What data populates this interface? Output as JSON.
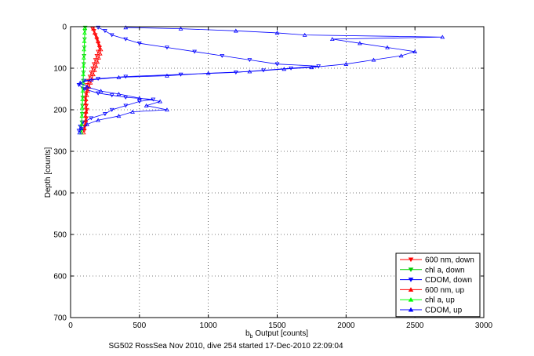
{
  "chart_data": {
    "type": "scatter",
    "xlabel": "b",
    "xlabel_sub": "b",
    "xlabel_rest": " Output [counts]",
    "ylabel": "Depth [counts]",
    "footer": "SG502 RossSea Nov 2010, dive 254 started 17-Dec-2010 22:09:04",
    "xlim": [
      0,
      3000
    ],
    "ylim": [
      0,
      700
    ],
    "y_reversed": true,
    "grid": true,
    "grid_style": "dotted",
    "x_ticks": [
      0,
      500,
      1000,
      1500,
      2000,
      2500,
      3000
    ],
    "y_ticks": [
      0,
      100,
      200,
      300,
      400,
      500,
      600,
      700
    ],
    "legend_position": "bottom-right",
    "series": [
      {
        "name": "600 nm, down",
        "color": "#ff0000",
        "marker": "triangle-down",
        "points": [
          [
            100,
            250
          ],
          [
            105,
            240
          ],
          [
            110,
            230
          ],
          [
            115,
            220
          ],
          [
            110,
            210
          ],
          [
            120,
            200
          ],
          [
            115,
            190
          ],
          [
            110,
            180
          ],
          [
            105,
            170
          ],
          [
            110,
            160
          ],
          [
            115,
            150
          ],
          [
            120,
            140
          ],
          [
            130,
            130
          ],
          [
            140,
            120
          ],
          [
            150,
            110
          ],
          [
            160,
            100
          ],
          [
            170,
            90
          ],
          [
            180,
            80
          ],
          [
            190,
            70
          ],
          [
            200,
            60
          ],
          [
            210,
            50
          ],
          [
            200,
            40
          ],
          [
            190,
            30
          ],
          [
            180,
            20
          ],
          [
            170,
            10
          ],
          [
            160,
            5
          ]
        ]
      },
      {
        "name": "chl a, down",
        "color": "#00cc00",
        "marker": "triangle-down",
        "points": [
          [
            80,
            250
          ],
          [
            82,
            230
          ],
          [
            84,
            210
          ],
          [
            86,
            190
          ],
          [
            88,
            170
          ],
          [
            90,
            150
          ],
          [
            92,
            130
          ],
          [
            94,
            110
          ],
          [
            96,
            90
          ],
          [
            98,
            70
          ],
          [
            100,
            50
          ],
          [
            102,
            30
          ],
          [
            104,
            10
          ],
          [
            106,
            2
          ]
        ]
      },
      {
        "name": "CDOM, down",
        "color": "#0000ff",
        "marker": "triangle-down",
        "points": [
          [
            60,
            250
          ],
          [
            70,
            240
          ],
          [
            90,
            230
          ],
          [
            150,
            220
          ],
          [
            250,
            210
          ],
          [
            300,
            200
          ],
          [
            400,
            190
          ],
          [
            500,
            180
          ],
          [
            600,
            175
          ],
          [
            400,
            170
          ],
          [
            300,
            165
          ],
          [
            200,
            160
          ],
          [
            100,
            150
          ],
          [
            60,
            140
          ],
          [
            100,
            130
          ],
          [
            200,
            125
          ],
          [
            400,
            120
          ],
          [
            800,
            115
          ],
          [
            1200,
            110
          ],
          [
            1400,
            105
          ],
          [
            1600,
            100
          ],
          [
            1800,
            95
          ],
          [
            1500,
            90
          ],
          [
            1300,
            80
          ],
          [
            1100,
            70
          ],
          [
            900,
            60
          ],
          [
            700,
            50
          ],
          [
            500,
            40
          ],
          [
            400,
            30
          ],
          [
            300,
            20
          ],
          [
            250,
            10
          ],
          [
            200,
            2
          ]
        ]
      },
      {
        "name": "600 nm, up",
        "color": "#ff0000",
        "marker": "triangle-up",
        "points": [
          [
            95,
            255
          ],
          [
            100,
            245
          ],
          [
            105,
            235
          ],
          [
            110,
            225
          ],
          [
            108,
            215
          ],
          [
            112,
            205
          ],
          [
            110,
            195
          ],
          [
            108,
            185
          ],
          [
            112,
            175
          ],
          [
            118,
            165
          ],
          [
            125,
            155
          ],
          [
            135,
            145
          ],
          [
            145,
            135
          ],
          [
            155,
            125
          ],
          [
            165,
            115
          ],
          [
            175,
            105
          ],
          [
            185,
            95
          ],
          [
            195,
            85
          ],
          [
            205,
            75
          ],
          [
            215,
            65
          ],
          [
            220,
            55
          ],
          [
            210,
            45
          ],
          [
            200,
            35
          ],
          [
            190,
            25
          ],
          [
            175,
            15
          ],
          [
            165,
            5
          ]
        ]
      },
      {
        "name": "chl a, up",
        "color": "#00ff00",
        "marker": "triangle-up",
        "points": [
          [
            78,
            255
          ],
          [
            80,
            235
          ],
          [
            82,
            215
          ],
          [
            84,
            195
          ],
          [
            86,
            175
          ],
          [
            88,
            155
          ],
          [
            90,
            135
          ],
          [
            92,
            115
          ],
          [
            94,
            95
          ],
          [
            96,
            75
          ],
          [
            98,
            55
          ],
          [
            100,
            35
          ],
          [
            102,
            15
          ],
          [
            104,
            3
          ]
        ]
      },
      {
        "name": "CDOM, up",
        "color": "#0000ff",
        "marker": "triangle-up",
        "points": [
          [
            65,
            255
          ],
          [
            80,
            245
          ],
          [
            120,
            235
          ],
          [
            200,
            225
          ],
          [
            350,
            215
          ],
          [
            450,
            205
          ],
          [
            700,
            200
          ],
          [
            550,
            190
          ],
          [
            650,
            180
          ],
          [
            500,
            172
          ],
          [
            350,
            162
          ],
          [
            220,
            155
          ],
          [
            120,
            145
          ],
          [
            70,
            135
          ],
          [
            150,
            128
          ],
          [
            350,
            122
          ],
          [
            700,
            118
          ],
          [
            1000,
            112
          ],
          [
            1300,
            108
          ],
          [
            1550,
            102
          ],
          [
            1750,
            98
          ],
          [
            2000,
            90
          ],
          [
            2200,
            80
          ],
          [
            2400,
            70
          ],
          [
            2500,
            60
          ],
          [
            2300,
            50
          ],
          [
            2100,
            40
          ],
          [
            1900,
            30
          ],
          [
            2700,
            25
          ],
          [
            1700,
            20
          ],
          [
            1500,
            15
          ],
          [
            1200,
            10
          ],
          [
            800,
            5
          ],
          [
            400,
            2
          ]
        ]
      }
    ]
  }
}
